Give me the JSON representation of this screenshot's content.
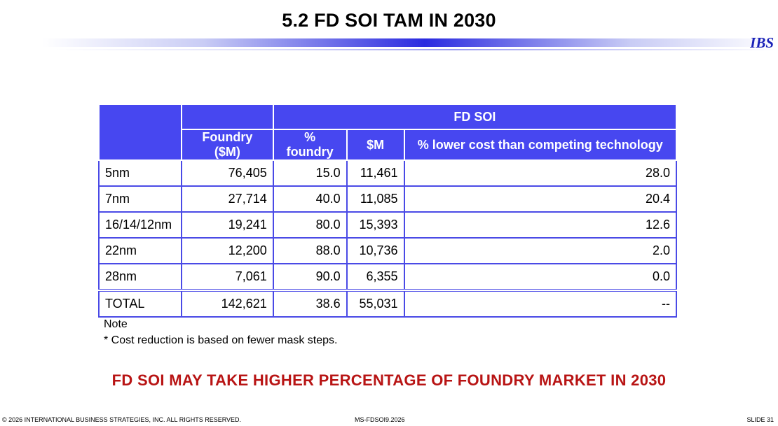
{
  "header": {
    "title": "5.2  FD SOI TAM IN 2030",
    "brand": "IBS"
  },
  "table": {
    "group_header": "FD SOI",
    "columns": [
      "Foundry ($M)",
      "% foundry",
      "$M",
      "% lower cost than competing technology"
    ],
    "rows": [
      {
        "node": "5nm",
        "foundry": "76,405",
        "pct_foundry": "15.0",
        "fdsoi_m": "11,461",
        "pct_lower": "28.0"
      },
      {
        "node": "7nm",
        "foundry": "27,714",
        "pct_foundry": "40.0",
        "fdsoi_m": "11,085",
        "pct_lower": "20.4"
      },
      {
        "node": "16/14/12nm",
        "foundry": "19,241",
        "pct_foundry": "80.0",
        "fdsoi_m": "15,393",
        "pct_lower": "12.6"
      },
      {
        "node": "22nm",
        "foundry": "12,200",
        "pct_foundry": "88.0",
        "fdsoi_m": "10,736",
        "pct_lower": "2.0"
      },
      {
        "node": "28nm",
        "foundry": "7,061",
        "pct_foundry": "90.0",
        "fdsoi_m": "6,355",
        "pct_lower": "0.0"
      }
    ],
    "total": {
      "node": "TOTAL",
      "foundry": "142,621",
      "pct_foundry": "38.6",
      "fdsoi_m": "55,031",
      "pct_lower": "--"
    }
  },
  "note": {
    "heading": "Note",
    "text": "* Cost reduction is based on fewer mask steps."
  },
  "headline": "FD SOI MAY TAKE HIGHER PERCENTAGE OF FOUNDRY MARKET IN 2030",
  "footer": {
    "copyright": "© 2026 INTERNATIONAL BUSINESS STRATEGIES, INC. ALL RIGHTS RESERVED.",
    "doc_id": "MS-FDSOI9.2026",
    "slide": "SLIDE 31"
  },
  "colors": {
    "header_blue": "#4747f0",
    "headline_red": "#b81414",
    "brand_blue": "#1a22b8"
  }
}
